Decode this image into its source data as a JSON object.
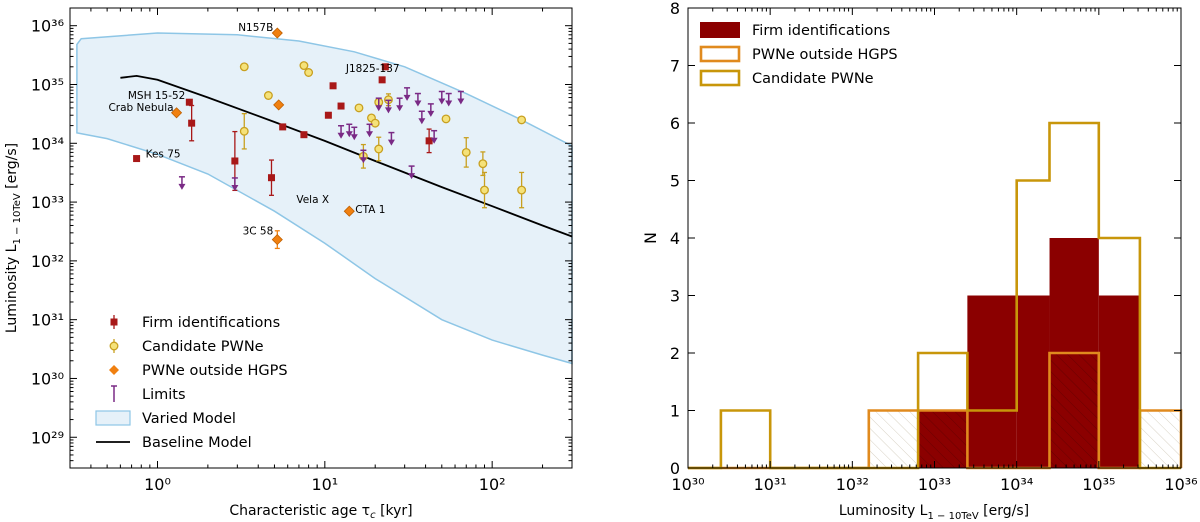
{
  "chart_data": [
    {
      "type": "scatter",
      "title": "",
      "xlabel": "Characteristic age τc [kyr]",
      "ylabel": "Luminosity L1−10TeV [erg/s]",
      "xscale": "log",
      "yscale": "log",
      "xlim": [
        0.3,
        300
      ],
      "ylim": [
        3e+28,
        2e+36
      ],
      "x_tick_values": [
        1,
        10,
        100
      ],
      "x_tick_labels": [
        "10⁰",
        "10¹",
        "10²"
      ],
      "y_tick_values": [
        1e+29,
        1e+30,
        1e+31,
        1e+32,
        1e+33,
        1e+34,
        1e+35,
        1e+36
      ],
      "y_tick_labels": [
        "10²⁹",
        "10³⁰",
        "10³¹",
        "10³²",
        "10³³",
        "10³⁴",
        "10³⁵",
        "10³⁶"
      ],
      "legend_position": "bottom-left",
      "legend": [
        "Firm identifications",
        "Candidate PWNe",
        "PWNe outside HGPS",
        "Limits",
        "Varied Model",
        "Baseline Model"
      ],
      "baseline_model": {
        "name": "Baseline Model",
        "color": "#000000",
        "x": [
          0.6,
          0.75,
          1.0,
          2.0,
          5.0,
          10,
          20,
          50,
          100,
          200,
          300
        ],
        "y": [
          1.3e+35,
          1.4e+35,
          1.2e+35,
          6e+34,
          2.3e+34,
          1.1e+34,
          5e+33,
          1.8e+33,
          8.5e+32,
          4e+32,
          2.6e+32
        ]
      },
      "varied_model": {
        "name": "Varied Model",
        "fill": "#e6f1f9",
        "stroke": "#8ec6e6",
        "x_upper": [
          0.33,
          0.35,
          1.0,
          3.0,
          7.0,
          15,
          30,
          70,
          150,
          300
        ],
        "y_upper": [
          4.8e+35,
          6e+35,
          7.5e+35,
          7e+35,
          5.5e+35,
          3.6e+35,
          2e+35,
          7e+34,
          2.5e+34,
          9e+33
        ],
        "x_lower": [
          0.33,
          0.5,
          1.0,
          2.0,
          5.0,
          10,
          20,
          50,
          100,
          200,
          300
        ],
        "y_lower": [
          1.5e+34,
          1.2e+34,
          6.5e+33,
          3e+33,
          7e+32,
          2e+32,
          5e+31,
          1e+31,
          4.5e+30,
          2.5e+30,
          1.8e+30
        ]
      },
      "series": [
        {
          "name": "Firm identifications",
          "marker": "square",
          "color": "#a81818",
          "x": [
            0.75,
            1.55,
            1.6,
            2.9,
            4.8,
            5.6,
            7.5,
            10.5,
            11.2,
            12.5,
            22,
            23,
            42
          ],
          "y": [
            5.5e+33,
            5e+34,
            2.2e+34,
            5e+33,
            2.6e+33,
            1.9e+34,
            1.4e+34,
            3e+34,
            9.5e+34,
            4.3e+34,
            1.2e+35,
            2e+35,
            1.1e+34
          ],
          "err_low": [
            0,
            0,
            0.3,
            0.5,
            0.3,
            0,
            0,
            0,
            0,
            0,
            0,
            0,
            0.2
          ],
          "err_high": [
            0,
            0,
            0.3,
            0.5,
            0.3,
            0,
            0,
            0,
            0,
            0,
            0,
            0,
            0.2
          ]
        },
        {
          "name": "Candidate PWNe",
          "marker": "circle",
          "color": "#f5e27a",
          "edge": "#c8a020",
          "x": [
            3.3,
            3.3,
            4.6,
            7.5,
            8.0,
            16,
            17,
            19,
            20,
            21,
            21,
            24,
            53,
            70,
            88,
            90,
            150,
            150
          ],
          "y": [
            2e+35,
            1.6e+34,
            6.5e+34,
            2.1e+35,
            1.6e+35,
            4e+34,
            6e+33,
            2.7e+34,
            2.2e+34,
            8e+33,
            5e+34,
            5.5e+34,
            2.6e+34,
            7e+33,
            4.5e+33,
            1.6e+33,
            1.6e+33,
            2.5e+34
          ],
          "err_low": [
            0,
            0.3,
            0,
            0,
            0,
            0,
            0.2,
            0,
            0,
            0.2,
            0,
            0.1,
            0,
            0.25,
            0.2,
            0.3,
            0.3,
            0
          ],
          "err_high": [
            0,
            0.3,
            0,
            0,
            0,
            0,
            0.2,
            0,
            0,
            0.2,
            0,
            0.1,
            0,
            0.25,
            0.2,
            0.3,
            0.3,
            0
          ]
        },
        {
          "name": "PWNe outside HGPS",
          "marker": "diamond",
          "color": "#f08010",
          "x": [
            5.2,
            1.3,
            5.3,
            14,
            5.2
          ],
          "y": [
            7.5e+35,
            3.3e+34,
            4.5e+34,
            7e+32,
            2.3e+32
          ],
          "err_low": [
            0,
            0,
            0,
            0,
            0.15
          ],
          "err_high": [
            0,
            0,
            0,
            0,
            0.15
          ]
        },
        {
          "name": "Limits",
          "marker": "upper-limit",
          "color": "#7a2a85",
          "x": [
            1.4,
            2.9,
            12.5,
            14,
            15,
            17,
            18.5,
            21,
            24,
            25,
            28,
            31,
            33,
            36,
            38,
            43,
            45,
            50,
            55,
            65
          ],
          "y": [
            2.3e+33,
            2.2e+33,
            1.7e+34,
            1.8e+34,
            1.6e+34,
            6.5e+33,
            1.8e+34,
            5e+34,
            4.6e+34,
            1.3e+34,
            5e+34,
            7.5e+34,
            3.5e+33,
            6e+34,
            3e+34,
            4e+34,
            1.4e+34,
            6.5e+34,
            6e+34,
            6.5e+34
          ]
        }
      ],
      "annotations": [
        {
          "text": "N157B",
          "x": 5.2,
          "y": 7.5e+35,
          "color": "#e07000"
        },
        {
          "text": "Crab Nebula",
          "x": 1.3,
          "y": 3.3e+34,
          "color": "#e07000"
        },
        {
          "text": "CTA 1",
          "x": 14,
          "y": 7e+32,
          "color": "#e07000"
        },
        {
          "text": "3C 58",
          "x": 5.2,
          "y": 2.3e+32,
          "color": "#e07000"
        },
        {
          "text": "J1825-137",
          "x": 21,
          "y": 1.2e+35,
          "color": "#8b0000"
        },
        {
          "text": "MSH 15-52",
          "x": 1.55,
          "y": 5e+34,
          "color": "#8b0000"
        },
        {
          "text": "Kes 75",
          "x": 0.75,
          "y": 5.5e+33,
          "color": "#8b0000"
        },
        {
          "text": "Vela X",
          "x": 11.2,
          "y": 8.5e+32,
          "color": "#8b0000"
        }
      ]
    },
    {
      "type": "bar",
      "subtype": "step-histogram",
      "title": "",
      "xlabel": "Luminosity L1−10TeV [erg/s]",
      "ylabel": "N",
      "xscale": "log",
      "xlim": [
        1e+30,
        1e+36
      ],
      "ylim": [
        0,
        8
      ],
      "x_tick_values": [
        1e+30,
        1e+31,
        1e+32,
        1e+33,
        1e+34,
        1e+35,
        1e+36
      ],
      "x_tick_labels": [
        "10³⁰",
        "10³¹",
        "10³²",
        "10³³",
        "10³⁴",
        "10³⁵",
        "10³⁶"
      ],
      "y_tick_values": [
        0,
        1,
        2,
        3,
        4,
        5,
        6,
        7,
        8
      ],
      "y_tick_labels": [
        "0",
        "1",
        "2",
        "3",
        "4",
        "5",
        "6",
        "7",
        "8"
      ],
      "legend_position": "top-left",
      "legend": [
        "Firm identifications",
        "PWNe outside HGPS",
        "Candidate PWNe"
      ],
      "bin_edges_log10": [
        30,
        30.4,
        31.0,
        31.6,
        32.2,
        32.8,
        33.4,
        34.0,
        34.4,
        35.0,
        35.5,
        36
      ],
      "series": [
        {
          "name": "Firm identifications",
          "style": "filled",
          "color": "#8b0000",
          "values": [
            0,
            0,
            0,
            0,
            0,
            1,
            3,
            3,
            4,
            3,
            0
          ]
        },
        {
          "name": "PWNe outside HGPS",
          "style": "step",
          "color": "#e08a1e",
          "values": [
            0,
            0,
            0,
            0,
            1,
            1,
            0,
            0,
            2,
            0,
            1
          ]
        },
        {
          "name": "Candidate PWNe",
          "style": "step",
          "color": "#c8960a",
          "values": [
            0,
            1,
            0,
            0,
            0,
            2,
            1,
            5,
            6,
            4,
            0
          ]
        }
      ]
    }
  ],
  "labels": {
    "left_y_label_main": "Luminosity L",
    "left_y_label_sub": "1 − 10TeV",
    "left_y_label_unit": " [erg/s]",
    "left_x_label_main": "Characteristic age τ",
    "left_x_label_sub": "c",
    "left_x_label_unit": " [kyr]",
    "right_y_label": "N",
    "right_x_label_main": "Luminosity L",
    "right_x_label_sub": "1 − 10TeV",
    "right_x_label_unit": " [erg/s]"
  }
}
